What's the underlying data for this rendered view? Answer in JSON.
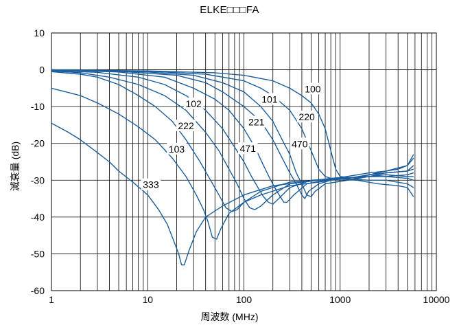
{
  "chart_data": {
    "type": "line",
    "title": "ELKE□□□FA",
    "xlabel": "周波数 (MHz)",
    "ylabel": "減衰量 (dB)",
    "x_scale": "log",
    "xlim": [
      1,
      10000
    ],
    "ylim": [
      -60,
      10
    ],
    "x_ticks": [
      "1",
      "10",
      "100",
      "1000",
      "10000"
    ],
    "y_ticks": [
      "10",
      "0",
      "-10",
      "-20",
      "-30",
      "-40",
      "-50",
      "-60"
    ],
    "grid": true,
    "line_color": "#1a5d9c",
    "series": [
      {
        "name": "100",
        "label_at": [
          520,
          -5.2
        ],
        "points": [
          [
            1,
            0
          ],
          [
            10,
            -0.3
          ],
          [
            50,
            -0.8
          ],
          [
            100,
            -1.5
          ],
          [
            200,
            -3
          ],
          [
            300,
            -5
          ],
          [
            400,
            -7
          ],
          [
            500,
            -9
          ],
          [
            600,
            -12
          ],
          [
            700,
            -16
          ],
          [
            800,
            -22
          ],
          [
            900,
            -27
          ],
          [
            1000,
            -29
          ],
          [
            1500,
            -29.5
          ],
          [
            2000,
            -28.5
          ],
          [
            3000,
            -27.5
          ],
          [
            4000,
            -27
          ],
          [
            5000,
            -26
          ],
          [
            5800,
            -24
          ]
        ]
      },
      {
        "name": "220",
        "label_at": [
          450,
          -12.8
        ],
        "points": [
          [
            1,
            0
          ],
          [
            10,
            -0.4
          ],
          [
            40,
            -1.2
          ],
          [
            100,
            -3
          ],
          [
            150,
            -5
          ],
          [
            200,
            -7
          ],
          [
            300,
            -11
          ],
          [
            400,
            -16
          ],
          [
            500,
            -22
          ],
          [
            600,
            -27
          ],
          [
            700,
            -29
          ],
          [
            800,
            -29.5
          ],
          [
            1000,
            -29.3
          ],
          [
            2000,
            -28
          ],
          [
            3000,
            -27.5
          ],
          [
            5000,
            -26
          ],
          [
            5800,
            -23
          ]
        ]
      },
      {
        "name": "470",
        "label_at": [
          380,
          -20.1
        ],
        "points": [
          [
            1,
            0
          ],
          [
            10,
            -0.6
          ],
          [
            30,
            -1.5
          ],
          [
            60,
            -3.5
          ],
          [
            100,
            -6
          ],
          [
            150,
            -10
          ],
          [
            200,
            -14
          ],
          [
            250,
            -19
          ],
          [
            300,
            -23
          ],
          [
            350,
            -28
          ],
          [
            400,
            -31
          ],
          [
            450,
            -34
          ],
          [
            500,
            -34.5
          ],
          [
            550,
            -33
          ],
          [
            700,
            -31
          ],
          [
            900,
            -30.5
          ],
          [
            1200,
            -30
          ],
          [
            2000,
            -29
          ],
          [
            3000,
            -28
          ],
          [
            5000,
            -27.5
          ],
          [
            5800,
            -26
          ]
        ]
      },
      {
        "name": "101",
        "label_at": [
          185,
          -8.0
        ],
        "points": [
          [
            1,
            0
          ],
          [
            5,
            -0.4
          ],
          [
            20,
            -1.5
          ],
          [
            40,
            -3.5
          ],
          [
            60,
            -6
          ],
          [
            100,
            -10
          ],
          [
            150,
            -14
          ],
          [
            200,
            -19
          ],
          [
            250,
            -24
          ],
          [
            300,
            -28
          ],
          [
            350,
            -31
          ],
          [
            400,
            -34
          ],
          [
            430,
            -35
          ],
          [
            470,
            -33
          ],
          [
            600,
            -31
          ],
          [
            800,
            -30
          ],
          [
            1200,
            -29.5
          ],
          [
            2000,
            -28.5
          ],
          [
            3000,
            -28
          ],
          [
            5000,
            -27.5
          ],
          [
            5800,
            -26
          ]
        ]
      },
      {
        "name": "221",
        "label_at": [
          135,
          -14.2
        ],
        "points": [
          [
            1,
            0
          ],
          [
            5,
            -0.6
          ],
          [
            15,
            -2
          ],
          [
            30,
            -5
          ],
          [
            50,
            -8
          ],
          [
            70,
            -11
          ],
          [
            100,
            -16
          ],
          [
            130,
            -21
          ],
          [
            160,
            -26
          ],
          [
            190,
            -30
          ],
          [
            220,
            -33
          ],
          [
            260,
            -36
          ],
          [
            280,
            -36
          ],
          [
            330,
            -34
          ],
          [
            450,
            -31
          ],
          [
            700,
            -30
          ],
          [
            1200,
            -29.5
          ],
          [
            2000,
            -28.5
          ],
          [
            3000,
            -28
          ],
          [
            5000,
            -27.5
          ],
          [
            5800,
            -27
          ]
        ]
      },
      {
        "name": "471",
        "label_at": [
          110,
          -21.4
        ],
        "points": [
          [
            1,
            -0.2
          ],
          [
            3,
            -0.7
          ],
          [
            8,
            -2
          ],
          [
            15,
            -4
          ],
          [
            25,
            -7
          ],
          [
            40,
            -11
          ],
          [
            60,
            -16
          ],
          [
            80,
            -21
          ],
          [
            100,
            -25
          ],
          [
            120,
            -29
          ],
          [
            140,
            -32
          ],
          [
            160,
            -34.5
          ],
          [
            180,
            -36
          ],
          [
            200,
            -36.5
          ],
          [
            230,
            -35
          ],
          [
            300,
            -32
          ],
          [
            500,
            -30
          ],
          [
            1000,
            -29.5
          ],
          [
            2000,
            -29
          ],
          [
            3000,
            -29
          ],
          [
            5000,
            -28.5
          ],
          [
            5800,
            -28
          ]
        ]
      },
      {
        "name": "102",
        "label_at": [
          30,
          -9.2
        ],
        "points": [
          [
            1,
            -0.3
          ],
          [
            2,
            -0.8
          ],
          [
            4,
            -2
          ],
          [
            8,
            -4
          ],
          [
            15,
            -7
          ],
          [
            25,
            -11
          ],
          [
            40,
            -17
          ],
          [
            55,
            -22
          ],
          [
            70,
            -27
          ],
          [
            85,
            -31
          ],
          [
            100,
            -35
          ],
          [
            115,
            -37.5
          ],
          [
            130,
            -38
          ],
          [
            150,
            -37
          ],
          [
            200,
            -34
          ],
          [
            300,
            -31
          ],
          [
            600,
            -30
          ],
          [
            1000,
            -29.5
          ],
          [
            2000,
            -29
          ],
          [
            3000,
            -28.5
          ],
          [
            5000,
            -29
          ],
          [
            5800,
            -29
          ]
        ]
      },
      {
        "name": "222",
        "label_at": [
          25,
          -15.2
        ],
        "points": [
          [
            1,
            -0.5
          ],
          [
            2,
            -1.2
          ],
          [
            3,
            -2
          ],
          [
            5,
            -4
          ],
          [
            8,
            -7
          ],
          [
            12,
            -10
          ],
          [
            18,
            -14
          ],
          [
            25,
            -19
          ],
          [
            35,
            -25
          ],
          [
            45,
            -30
          ],
          [
            55,
            -34
          ],
          [
            65,
            -37.5
          ],
          [
            75,
            -38.5
          ],
          [
            85,
            -38
          ],
          [
            100,
            -36
          ],
          [
            150,
            -33
          ],
          [
            300,
            -30.5
          ],
          [
            600,
            -30
          ],
          [
            1000,
            -29.5
          ],
          [
            2000,
            -29
          ],
          [
            3000,
            -29
          ],
          [
            5000,
            -29.5
          ],
          [
            5800,
            -30
          ]
        ]
      },
      {
        "name": "103",
        "label_at": [
          20,
          -21.5
        ],
        "points": [
          [
            1,
            -5
          ],
          [
            2,
            -7
          ],
          [
            3,
            -9
          ],
          [
            5,
            -12
          ],
          [
            8,
            -15.5
          ],
          [
            12,
            -19
          ],
          [
            18,
            -24
          ],
          [
            25,
            -29
          ],
          [
            32,
            -34
          ],
          [
            38,
            -38
          ],
          [
            42,
            -41
          ],
          [
            47,
            -45.5
          ],
          [
            52,
            -46
          ],
          [
            58,
            -43
          ],
          [
            70,
            -39
          ],
          [
            100,
            -36
          ],
          [
            150,
            -34
          ],
          [
            300,
            -31.5
          ],
          [
            600,
            -30.5
          ],
          [
            1000,
            -29.5
          ],
          [
            2000,
            -30
          ],
          [
            3000,
            -30
          ],
          [
            5000,
            -31
          ],
          [
            5800,
            -32
          ]
        ]
      },
      {
        "name": "333",
        "label_at": [
          10.8,
          -31.2
        ],
        "points": [
          [
            1,
            -14.5
          ],
          [
            1.5,
            -17
          ],
          [
            2,
            -19
          ],
          [
            3,
            -22.5
          ],
          [
            4,
            -25
          ],
          [
            5,
            -27.5
          ],
          [
            7,
            -30.5
          ],
          [
            10,
            -34
          ],
          [
            13,
            -38
          ],
          [
            16,
            -42
          ],
          [
            19,
            -47
          ],
          [
            21,
            -50
          ],
          [
            22.5,
            -53
          ],
          [
            24,
            -53
          ],
          [
            27,
            -49
          ],
          [
            32,
            -44
          ],
          [
            40,
            -40
          ],
          [
            60,
            -37
          ],
          [
            100,
            -34
          ],
          [
            200,
            -31.5
          ],
          [
            400,
            -30.5
          ],
          [
            800,
            -29.5
          ],
          [
            1500,
            -30
          ],
          [
            2500,
            -31
          ],
          [
            4000,
            -31.5
          ],
          [
            5000,
            -32
          ],
          [
            5800,
            -34.5
          ]
        ]
      }
    ]
  }
}
